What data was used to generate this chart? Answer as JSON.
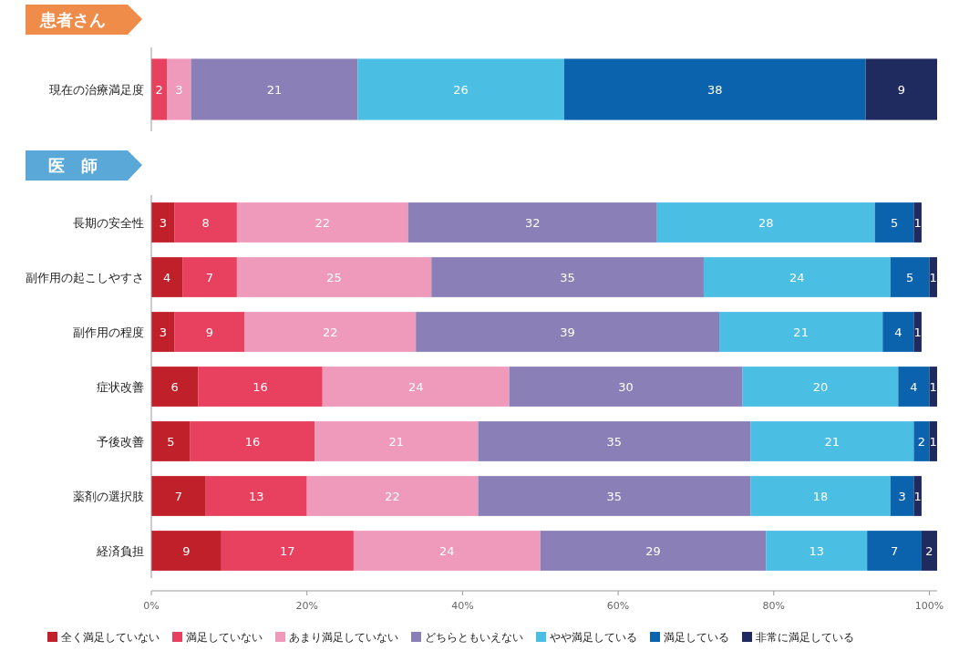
{
  "chart_data": [
    {
      "type": "bar",
      "orientation": "horizontal",
      "stacked": true,
      "title": "患者さん",
      "categories": [
        "現在の治療満足度"
      ],
      "tick_labels": "y",
      "data_labels": true,
      "grid": false,
      "legend": false,
      "series": [
        {
          "color": "#e8415f",
          "values": [
            2
          ]
        },
        {
          "color": "#ef9aba",
          "values": [
            3
          ]
        },
        {
          "color": "#8b7fb8",
          "values": [
            21
          ]
        },
        {
          "color": "#4bbfe3",
          "values": [
            26
          ]
        },
        {
          "color": "#0b63ad",
          "values": [
            38
          ]
        },
        {
          "color": "#1f2a5e",
          "values": [
            9
          ]
        }
      ]
    },
    {
      "type": "bar",
      "orientation": "horizontal",
      "stacked": true,
      "title": "医　師",
      "categories": [
        "長期の安全性",
        "副作用の起こしやすさ",
        "副作用の程度",
        "症状改善",
        "予後改善",
        "薬剤の選択肢",
        "経済負担"
      ],
      "xlim": [
        0,
        101
      ],
      "xticks": [
        {
          "value": 0,
          "label": "0%"
        },
        {
          "value": 20,
          "label": "20%"
        },
        {
          "value": 40,
          "label": "40%"
        },
        {
          "value": 60,
          "label": "60%"
        },
        {
          "value": 80,
          "label": "80%"
        },
        {
          "value": 100,
          "label": "100%"
        }
      ],
      "data_labels": true,
      "grid": false,
      "legend": "bottom",
      "series": [
        {
          "name": "全く満足していない",
          "color": "#c0202a",
          "values": [
            3,
            4,
            3,
            6,
            5,
            7,
            9
          ]
        },
        {
          "name": "満足していない",
          "color": "#e8415f",
          "values": [
            8,
            7,
            9,
            16,
            16,
            13,
            17
          ]
        },
        {
          "name": "あまり満足していない",
          "color": "#ef9aba",
          "values": [
            22,
            25,
            22,
            24,
            21,
            22,
            24
          ]
        },
        {
          "name": "どちらともいえない",
          "color": "#8b7fb8",
          "values": [
            32,
            35,
            39,
            30,
            35,
            35,
            29
          ]
        },
        {
          "name": "やや満足している",
          "color": "#4bbfe3",
          "values": [
            28,
            24,
            21,
            20,
            21,
            18,
            13
          ]
        },
        {
          "name": "満足している",
          "color": "#0b63ad",
          "values": [
            5,
            5,
            4,
            4,
            2,
            3,
            7
          ]
        },
        {
          "name": "非常に満足している",
          "color": "#1f2a5e",
          "values": [
            1,
            1,
            1,
            1,
            1,
            1,
            2
          ]
        }
      ]
    }
  ]
}
